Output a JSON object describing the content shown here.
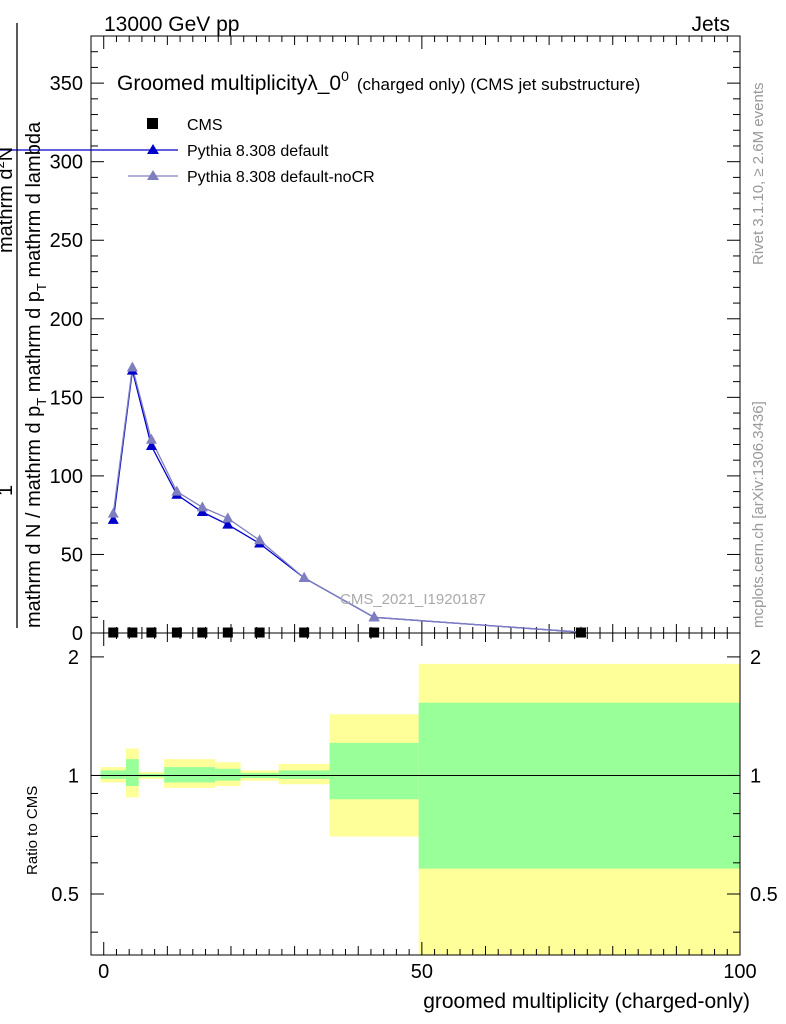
{
  "header": {
    "left": "13000 GeV pp",
    "right": "Jets"
  },
  "side_labels": {
    "rivet": "Rivet 3.1.10, ≥ 2.6M events",
    "mcplots": "mcplots.cern.ch [arXiv:1306.3436]"
  },
  "main_title": "Groomed multiplicityλ_0",
  "title_sup": "0",
  "title_suffix": "(charged only) (CMS jet substructure)",
  "watermark": "CMS_2021_I1920187",
  "legend": {
    "cms": "CMS",
    "default": "Pythia 8.308 default",
    "nocr": "Pythia 8.308 default-noCR"
  },
  "ylabel": {
    "denominator": "mathrm d N / mathrm d p",
    "denominator_sub": "T",
    "denominator_tail": " mathrm d p",
    "denominator_sub2": "T",
    "denominator_end": " mathrm d lambda",
    "numerator": "mathrm d",
    "numerator_sup": "2",
    "numerator_end": "N",
    "one": "1"
  },
  "xlabel": "groomed multiplicity (charged-only)",
  "ratio_ylabel": "Ratio to CMS",
  "colors": {
    "cms": "#000000",
    "default": "#0000cc",
    "nocr": "#7f7fbf",
    "band_yellow": "#ffff99",
    "band_green": "#99ff99"
  },
  "chart_data": [
    {
      "type": "line",
      "xlim": [
        -2,
        100
      ],
      "ylim": [
        0,
        380
      ],
      "yticks": [
        0,
        50,
        100,
        150,
        200,
        250,
        300,
        350
      ],
      "cms": {
        "name": "CMS",
        "x": [
          1.5,
          4.5,
          7.5,
          11.5,
          15.5,
          19.5,
          24.5,
          31.5,
          42.5,
          75
        ],
        "y": [
          0.3,
          0.3,
          0.3,
          0.3,
          0.3,
          0.3,
          0.3,
          0.3,
          0.3,
          0.3
        ]
      },
      "series": [
        {
          "name": "Pythia 8.308 default",
          "x": [
            1.5,
            4.5,
            7.5,
            11.5,
            15.5,
            19.5,
            24.5,
            31.5,
            42.5,
            75
          ],
          "y": [
            72,
            167,
            119,
            88,
            77,
            69,
            57,
            35,
            10,
            0.5
          ]
        },
        {
          "name": "Pythia 8.308 default-noCR",
          "x": [
            1.5,
            4.5,
            7.5,
            11.5,
            15.5,
            19.5,
            24.5,
            31.5,
            42.5,
            75
          ],
          "y": [
            76,
            169,
            123,
            90,
            80,
            73,
            59,
            35,
            10,
            0.5
          ]
        }
      ]
    },
    {
      "type": "area",
      "xlim": [
        -2,
        100
      ],
      "ylim": [
        0.35,
        2.3
      ],
      "yticks": [
        0.5,
        1,
        2
      ],
      "xticks": [
        0,
        50,
        100
      ],
      "bands": [
        {
          "x0": -0.5,
          "x1": 3.5,
          "y_lo": 0.96,
          "y_hi": 1.05,
          "g_lo": 0.98,
          "g_hi": 1.03
        },
        {
          "x0": 3.5,
          "x1": 5.5,
          "y_lo": 0.88,
          "y_hi": 1.17,
          "g_lo": 0.94,
          "g_hi": 1.1
        },
        {
          "x0": 5.5,
          "x1": 9.5,
          "y_lo": 0.98,
          "y_hi": 1.02,
          "g_lo": 0.99,
          "g_hi": 1.01
        },
        {
          "x0": 9.5,
          "x1": 17.5,
          "y_lo": 0.93,
          "y_hi": 1.1,
          "g_lo": 0.96,
          "g_hi": 1.05
        },
        {
          "x0": 17.5,
          "x1": 21.5,
          "y_lo": 0.94,
          "y_hi": 1.08,
          "g_lo": 0.97,
          "g_hi": 1.04
        },
        {
          "x0": 21.5,
          "x1": 27.5,
          "y_lo": 0.97,
          "y_hi": 1.03,
          "g_lo": 0.985,
          "g_hi": 1.015
        },
        {
          "x0": 27.5,
          "x1": 35.5,
          "y_lo": 0.95,
          "y_hi": 1.07,
          "g_lo": 0.98,
          "g_hi": 1.03
        },
        {
          "x0": 35.5,
          "x1": 49.5,
          "y_lo": 0.7,
          "y_hi": 1.43,
          "g_lo": 0.87,
          "g_hi": 1.21
        },
        {
          "x0": 49.5,
          "x1": 100,
          "y_lo": 0.33,
          "y_hi": 1.92,
          "g_lo": 0.58,
          "g_hi": 1.53
        }
      ]
    }
  ]
}
